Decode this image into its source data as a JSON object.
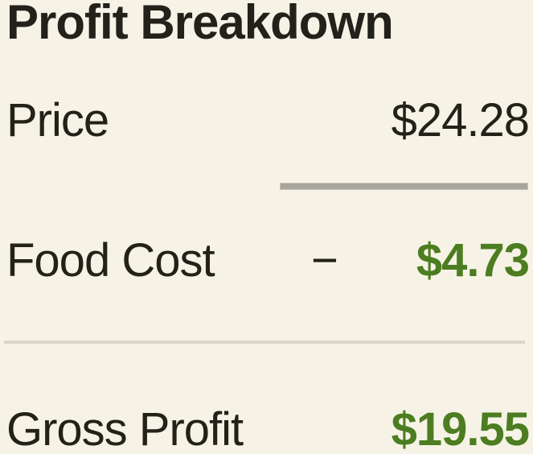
{
  "card": {
    "title": "Profit Breakdown",
    "rows": {
      "price": {
        "label": "Price",
        "value": "$24.28"
      },
      "food_cost": {
        "label": "Food Cost",
        "operator": "−",
        "value": "$4.73"
      },
      "gross_profit": {
        "label": "Gross Profit",
        "value": "$19.55"
      }
    },
    "colors": {
      "background": "#f6f3e6",
      "text": "#232218",
      "positive_green": "#4c7d21",
      "subtraction_rule": "#a8a69c",
      "divider": "#d9d7c9"
    }
  }
}
